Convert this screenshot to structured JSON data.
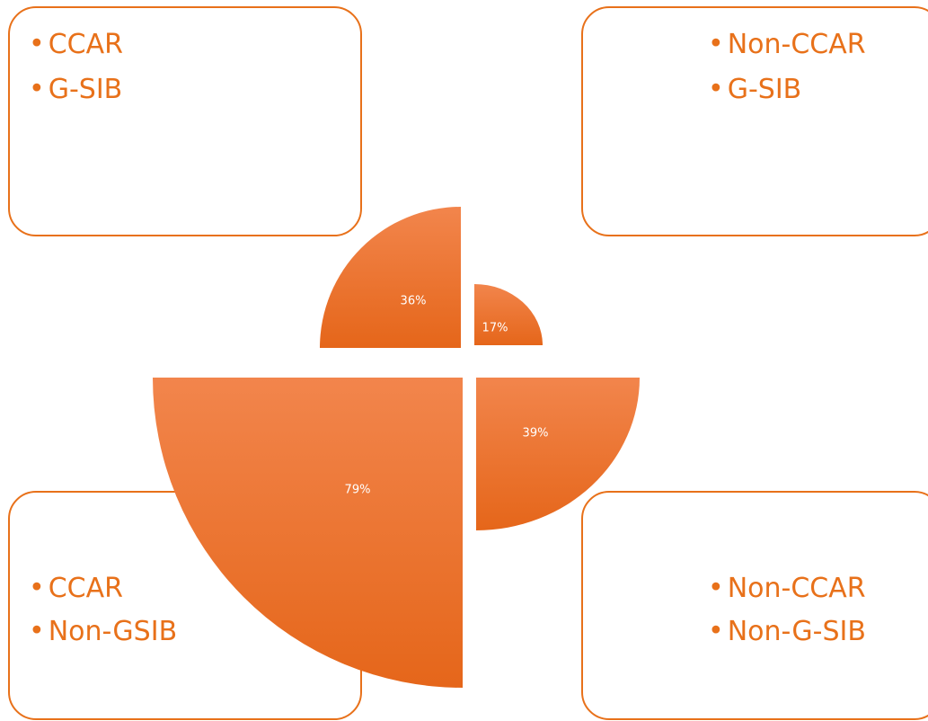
{
  "boxes": [
    {
      "bullets": [
        "CCAR",
        "G-SIB"
      ]
    },
    {
      "bullets": [
        "Non-CCAR",
        "G-SIB"
      ]
    },
    {
      "bullets": [
        "CCAR",
        "Non-GSIB"
      ]
    },
    {
      "bullets": [
        "Non-CCAR",
        "Non-G-SIB"
      ]
    }
  ],
  "segments": [
    {
      "label": "36%"
    },
    {
      "label": "17%"
    },
    {
      "label": "79%"
    },
    {
      "label": "39%"
    }
  ]
}
